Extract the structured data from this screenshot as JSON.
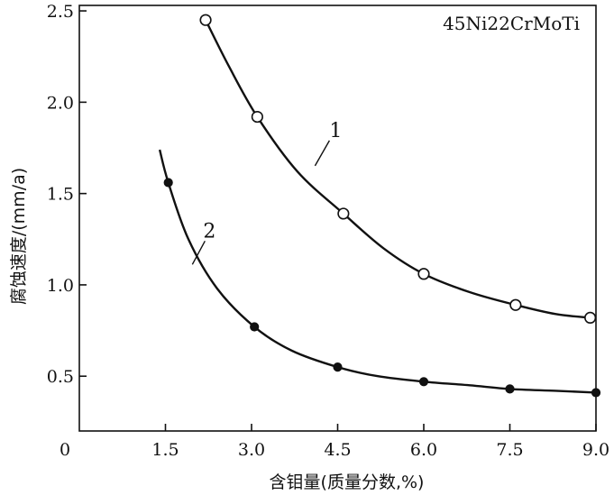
{
  "chart_data": {
    "type": "scatter",
    "annotation": "45Ni22CrMoTi",
    "xlabel": "含钼量(质量分数,%)",
    "ylabel": "腐蚀速度/(mm/a)",
    "xlim": [
      0,
      9.0
    ],
    "ylim": [
      0.2,
      2.5
    ],
    "x_ticks": [
      1.5,
      3.0,
      4.5,
      6.0,
      7.5,
      9.0
    ],
    "x_tick_labels": [
      "1.5",
      "3.0",
      "4.5",
      "6.0",
      "7.5",
      "9.0"
    ],
    "y_ticks": [
      0.5,
      1.0,
      1.5,
      2.0,
      2.5
    ],
    "y_tick_labels": [
      "0.5",
      "1.0",
      "1.5",
      "2.0",
      "2.5"
    ],
    "origin_label": "0",
    "grid": false,
    "series": [
      {
        "name": "1",
        "marker": "open-circle",
        "x": [
          2.2,
          3.1,
          4.6,
          6.0,
          7.6,
          8.9
        ],
        "y": [
          2.45,
          1.92,
          1.39,
          1.06,
          0.89,
          0.82
        ],
        "curve_x": [
          2.2,
          2.6,
          3.1,
          3.8,
          4.6,
          5.3,
          6.0,
          6.8,
          7.6,
          8.3,
          8.9
        ],
        "curve_y": [
          2.45,
          2.2,
          1.92,
          1.62,
          1.39,
          1.2,
          1.06,
          0.96,
          0.89,
          0.84,
          0.82
        ],
        "label_at": [
          4.2,
          1.8
        ]
      },
      {
        "name": "2",
        "marker": "filled-circle",
        "x": [
          1.55,
          3.05,
          4.5,
          6.0,
          7.5,
          9.0
        ],
        "y": [
          1.56,
          0.77,
          0.55,
          0.47,
          0.43,
          0.41
        ],
        "curve_x": [
          1.4,
          1.55,
          1.9,
          2.4,
          3.05,
          3.7,
          4.5,
          5.2,
          6.0,
          6.8,
          7.5,
          8.3,
          9.0
        ],
        "curve_y": [
          1.74,
          1.56,
          1.25,
          0.98,
          0.77,
          0.64,
          0.55,
          0.5,
          0.47,
          0.45,
          0.43,
          0.42,
          0.41
        ],
        "label_at": [
          2.0,
          1.25
        ]
      }
    ]
  }
}
